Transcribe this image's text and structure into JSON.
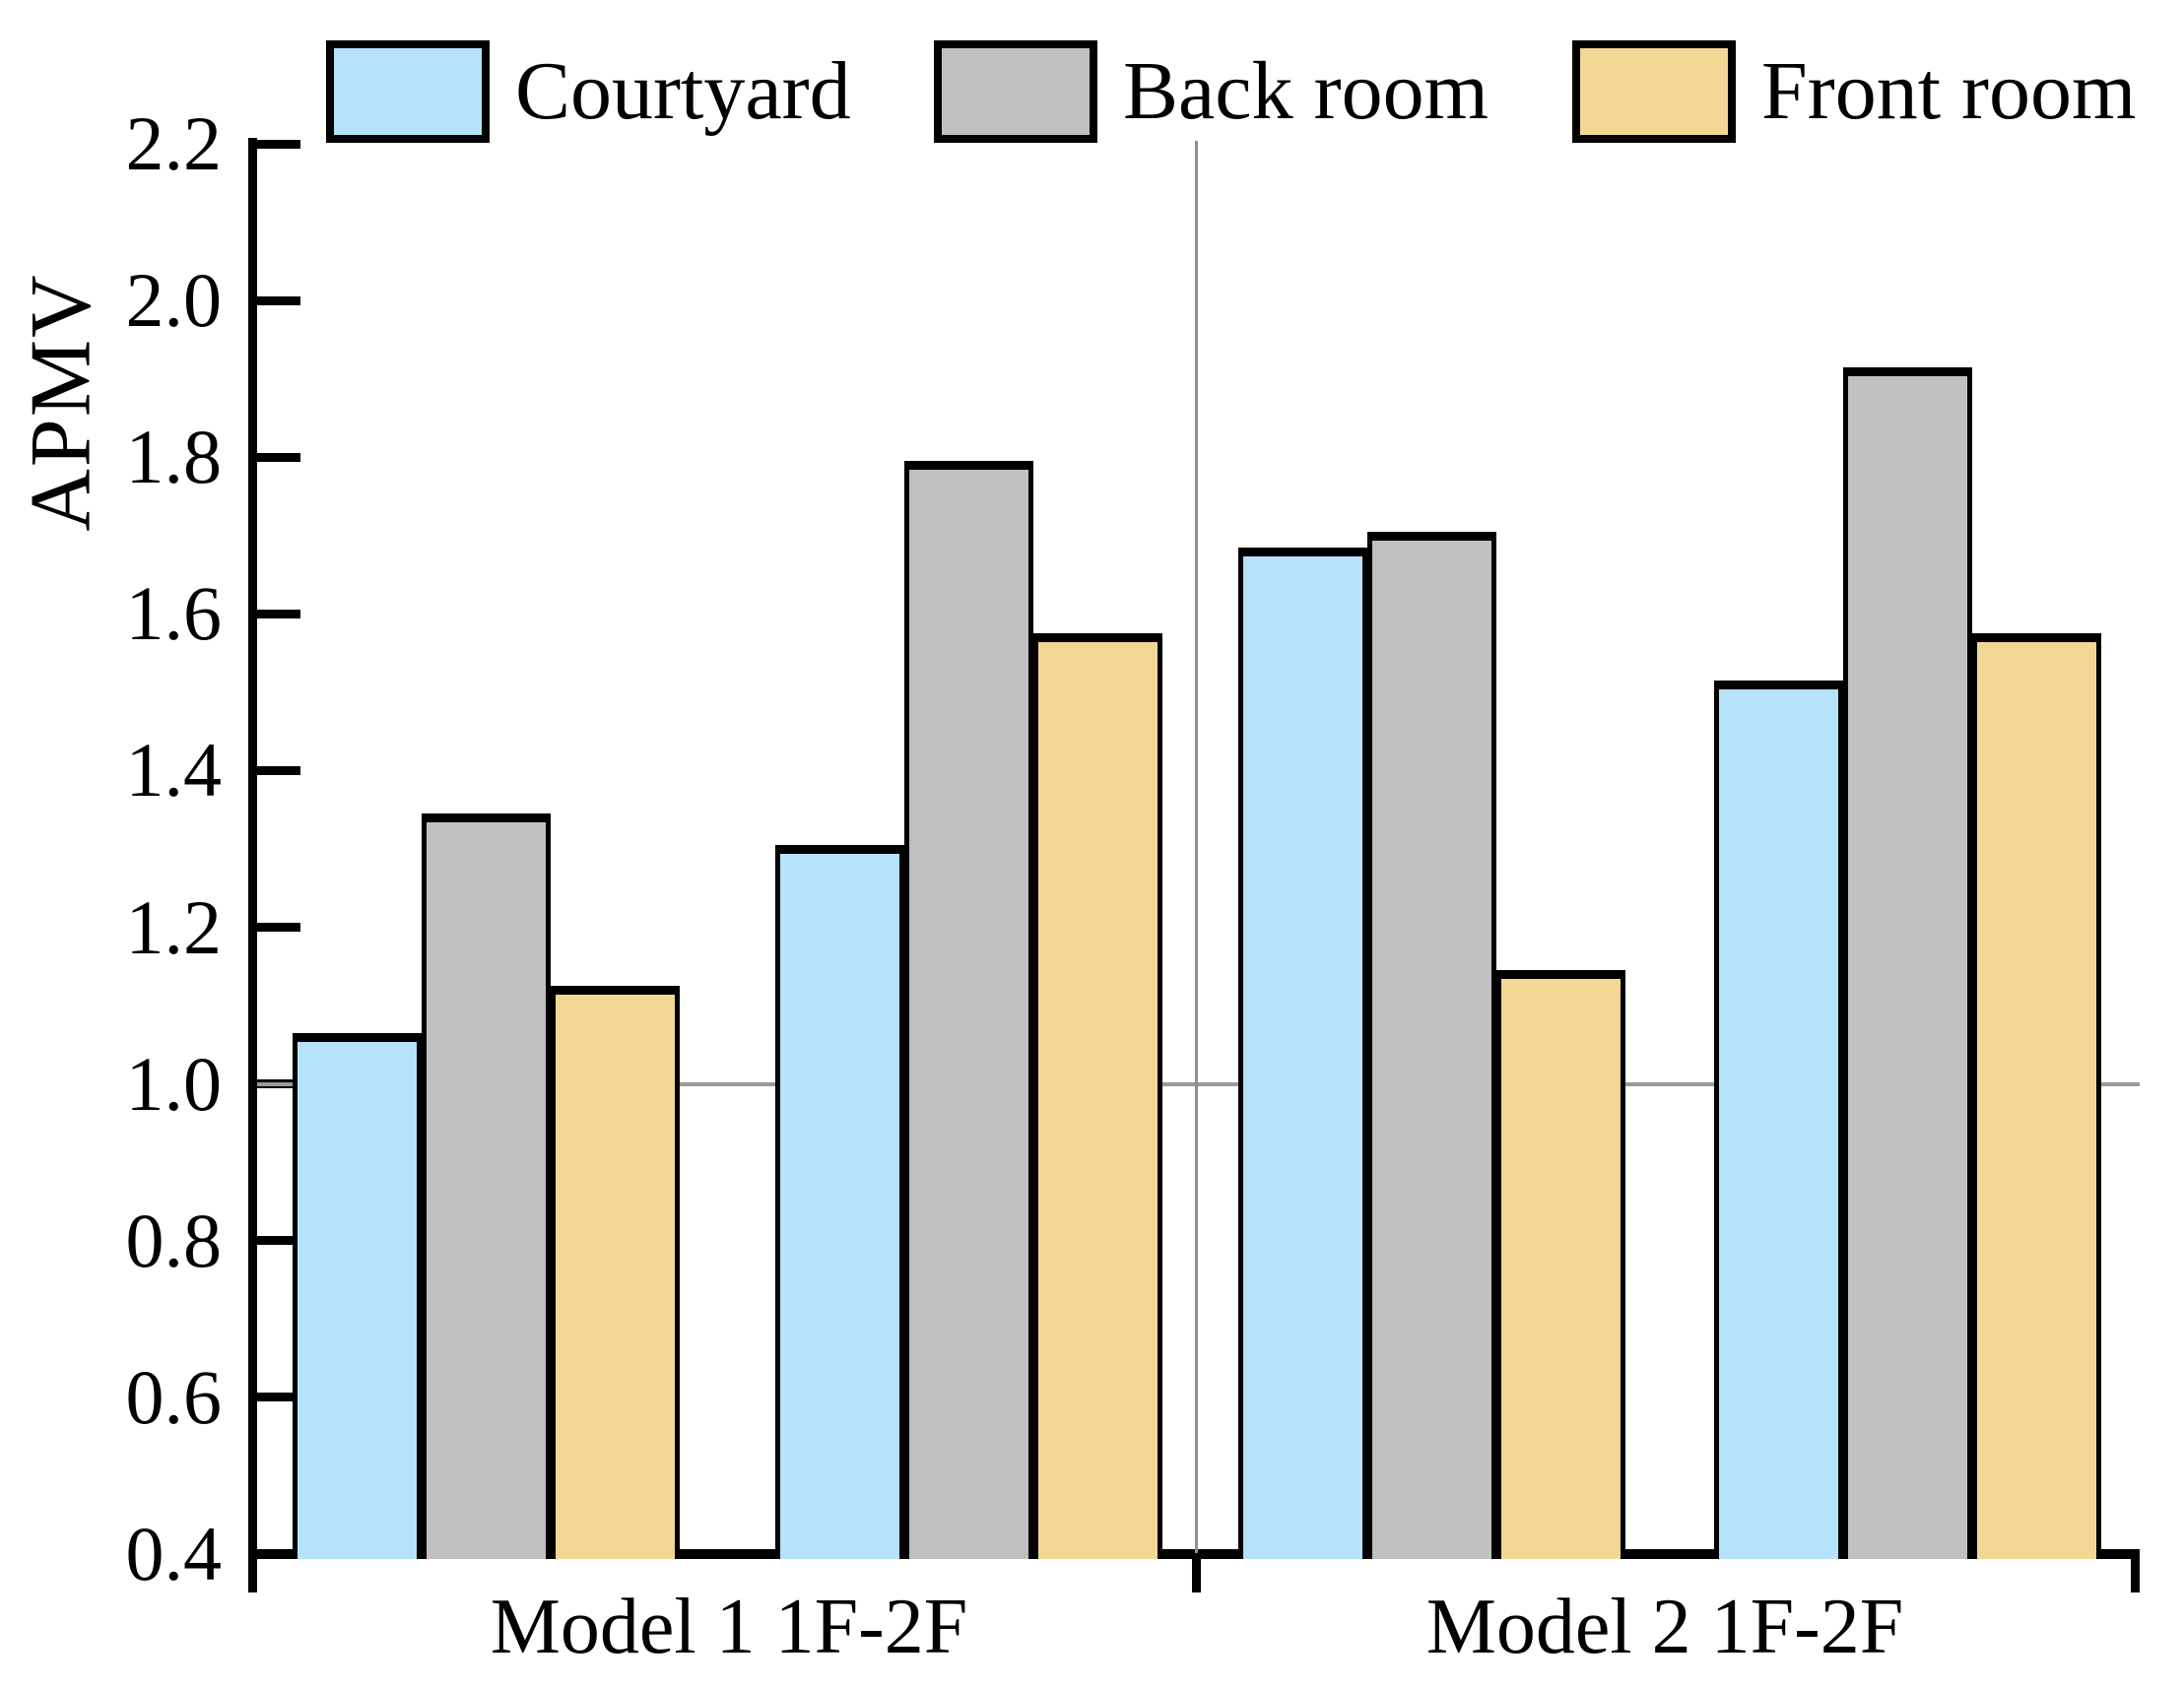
{
  "chart_data": {
    "type": "bar",
    "title": "",
    "ylabel": "APMV",
    "xlabel": "",
    "ylim": [
      0.4,
      2.2
    ],
    "yticks": [
      2.2,
      2.0,
      1.8,
      1.6,
      1.4,
      1.2,
      1.0,
      0.8,
      0.6,
      0.4
    ],
    "reference_line": 1.0,
    "grid": "off",
    "legend_position": "top",
    "categories": [
      "Model 1 1F-2F",
      "Model 2 1F-2F"
    ],
    "groups_per_category": 2,
    "series": [
      {
        "name": "Courtyard",
        "color": "#B6E2FB",
        "values": [
          1.065,
          1.305,
          1.685,
          1.515
        ]
      },
      {
        "name": "Back room",
        "color": "#C0C0C0",
        "values": [
          1.345,
          1.795,
          1.705,
          1.915
        ]
      },
      {
        "name": "Front room",
        "color": "#F2D794",
        "values": [
          1.125,
          1.575,
          1.145,
          1.575
        ]
      }
    ],
    "colors": {
      "bar_edge": "#000000",
      "reference_line": "#9a9a9a",
      "divider_line": "#8f8f8f"
    }
  }
}
